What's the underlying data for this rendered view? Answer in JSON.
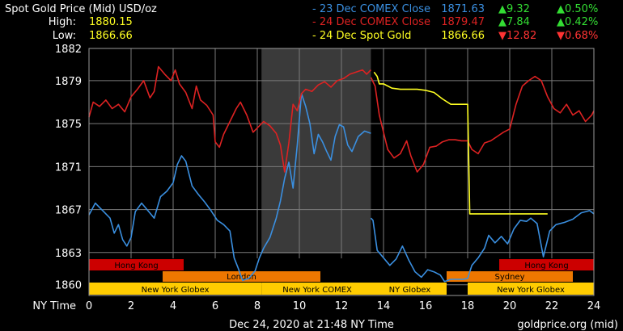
{
  "header": {
    "title": "Spot Gold Price (Mid) USD/oz",
    "high_label": "High:",
    "high_value": "1880.15",
    "low_label": "Low:",
    "low_value": "1866.66"
  },
  "legend": [
    {
      "label": "- 23 Dec COMEX Close",
      "value": "1871.63",
      "change": "▲9.32",
      "pct": "▲0.50%",
      "color": "#3a8fe0",
      "change_color": "#33dd33"
    },
    {
      "label": "- 24 Dec COMEX Close",
      "value": "1879.47",
      "change": "▲7.84",
      "pct": "▲0.42%",
      "color": "#dd2222",
      "change_color": "#33dd33"
    },
    {
      "label": "- 24 Dec Spot Gold",
      "value": "1866.66",
      "change": "▼12.82",
      "pct": "▼0.68%",
      "color": "#ffff22",
      "change_color": "#ff3333"
    }
  ],
  "footer": {
    "timestamp": "Dec 24, 2020 at 21:48 NY Time",
    "source": "goldprice.org (mid)"
  },
  "colors": {
    "series_23dec": "#3a8fe0",
    "series_24dec": "#dd2222",
    "series_spot": "#ffff22",
    "grid": "#7a7a7a",
    "shade": "#3a3a3a",
    "session_hk": "#cc0000",
    "session_london": "#ee7700",
    "session_ny": "#ffcc00"
  },
  "chart_data": {
    "type": "line",
    "xlabel": "NY Time",
    "xlim": [
      0,
      24
    ],
    "ylim": [
      1859,
      1882
    ],
    "x_ticks": [
      0,
      2,
      4,
      6,
      8,
      10,
      12,
      14,
      16,
      18,
      20,
      22,
      24
    ],
    "y_ticks": [
      1860,
      1863,
      1867,
      1871,
      1875,
      1879,
      1882
    ],
    "shaded_range": [
      8.2,
      13.4
    ],
    "grid": true,
    "sessions": [
      {
        "name": "Hong Kong",
        "row": 0,
        "start": 0,
        "end": 4.5,
        "color": "#cc0000"
      },
      {
        "name": "Hong Kong",
        "row": 0,
        "start": 19.5,
        "end": 24,
        "color": "#cc0000"
      },
      {
        "name": "London",
        "row": 1,
        "start": 3.5,
        "end": 11,
        "color": "#ee7700"
      },
      {
        "name": "Sydney",
        "row": 1,
        "start": 17,
        "end": 23,
        "color": "#ee7700"
      },
      {
        "name": "New York Globex",
        "row": 2,
        "start": 0,
        "end": 8.2,
        "color": "#ffcc00"
      },
      {
        "name": "New York COMEX",
        "row": 2,
        "start": 8.2,
        "end": 13.5,
        "color": "#ffcc00"
      },
      {
        "name": "NY Globex",
        "row": 2,
        "start": 13.5,
        "end": 17,
        "color": "#ffcc00"
      },
      {
        "name": "New York Globex",
        "row": 2,
        "start": 18,
        "end": 24,
        "color": "#ffcc00"
      }
    ],
    "series": [
      {
        "name": "23 Dec COMEX Close",
        "color": "#3a8fe0",
        "segments": [
          [
            [
              0,
              1866.5
            ],
            [
              0.3,
              1867.6
            ],
            [
              0.7,
              1866.8
            ],
            [
              1.0,
              1866.2
            ],
            [
              1.2,
              1864.8
            ],
            [
              1.4,
              1865.6
            ],
            [
              1.6,
              1864.2
            ],
            [
              1.8,
              1863.6
            ],
            [
              2.0,
              1864.4
            ],
            [
              2.2,
              1866.8
            ],
            [
              2.5,
              1867.6
            ],
            [
              2.8,
              1866.9
            ],
            [
              3.1,
              1866.2
            ],
            [
              3.4,
              1868.2
            ],
            [
              3.7,
              1868.7
            ],
            [
              4.0,
              1869.5
            ],
            [
              4.2,
              1871.2
            ],
            [
              4.4,
              1872.0
            ],
            [
              4.6,
              1871.5
            ],
            [
              4.9,
              1869.2
            ],
            [
              5.2,
              1868.4
            ],
            [
              5.5,
              1867.7
            ],
            [
              5.8,
              1866.9
            ],
            [
              6.1,
              1866.0
            ],
            [
              6.4,
              1865.6
            ],
            [
              6.7,
              1865.0
            ],
            [
              6.9,
              1862.5
            ],
            [
              7.1,
              1861.5
            ],
            [
              7.3,
              1860.4
            ],
            [
              7.6,
              1860.6
            ],
            [
              7.9,
              1861.3
            ],
            [
              8.1,
              1862.5
            ],
            [
              8.3,
              1863.4
            ],
            [
              8.6,
              1864.4
            ],
            [
              8.9,
              1866.2
            ],
            [
              9.1,
              1867.8
            ],
            [
              9.3,
              1869.9
            ],
            [
              9.5,
              1871.4
            ],
            [
              9.7,
              1869.0
            ],
            [
              9.9,
              1873.0
            ],
            [
              10.1,
              1877.8
            ],
            [
              10.3,
              1876.6
            ],
            [
              10.5,
              1875.0
            ],
            [
              10.7,
              1872.2
            ],
            [
              10.9,
              1874.0
            ],
            [
              11.1,
              1873.3
            ],
            [
              11.3,
              1872.4
            ],
            [
              11.5,
              1871.6
            ],
            [
              11.7,
              1873.8
            ],
            [
              11.9,
              1874.9
            ],
            [
              12.1,
              1874.7
            ],
            [
              12.3,
              1873.0
            ],
            [
              12.5,
              1872.4
            ],
            [
              12.8,
              1873.8
            ],
            [
              13.1,
              1874.3
            ],
            [
              13.4,
              1874.1
            ]
          ],
          [
            [
              13.4,
              1866.2
            ],
            [
              13.5,
              1866.0
            ],
            [
              13.7,
              1863.2
            ],
            [
              14.0,
              1862.5
            ],
            [
              14.3,
              1861.8
            ],
            [
              14.6,
              1862.4
            ],
            [
              14.9,
              1863.6
            ],
            [
              15.2,
              1862.3
            ],
            [
              15.5,
              1861.2
            ],
            [
              15.8,
              1860.7
            ],
            [
              16.1,
              1861.4
            ],
            [
              16.4,
              1861.2
            ],
            [
              16.7,
              1860.9
            ],
            [
              16.9,
              1860.3
            ],
            [
              17.2,
              1860.5
            ],
            [
              17.5,
              1860.5
            ],
            [
              17.8,
              1860.5
            ],
            [
              18.0,
              1860.6
            ],
            [
              18.2,
              1861.8
            ],
            [
              18.5,
              1862.5
            ],
            [
              18.8,
              1863.4
            ],
            [
              19.0,
              1864.6
            ],
            [
              19.3,
              1863.9
            ],
            [
              19.6,
              1864.5
            ],
            [
              19.9,
              1863.8
            ],
            [
              20.2,
              1865.2
            ],
            [
              20.5,
              1866.0
            ],
            [
              20.8,
              1865.9
            ],
            [
              21.0,
              1866.2
            ],
            [
              21.3,
              1865.7
            ],
            [
              21.6,
              1862.6
            ],
            [
              21.9,
              1865.0
            ],
            [
              22.2,
              1865.6
            ],
            [
              22.6,
              1865.8
            ],
            [
              23.0,
              1866.1
            ],
            [
              23.4,
              1866.7
            ],
            [
              23.8,
              1866.9
            ],
            [
              24.0,
              1866.6
            ]
          ]
        ]
      },
      {
        "name": "24 Dec COMEX Close",
        "color": "#dd2222",
        "segments": [
          [
            [
              0,
              1875.6
            ],
            [
              0.2,
              1877.0
            ],
            [
              0.5,
              1876.6
            ],
            [
              0.8,
              1877.2
            ],
            [
              1.1,
              1876.4
            ],
            [
              1.4,
              1876.8
            ],
            [
              1.7,
              1876.1
            ],
            [
              2.0,
              1877.5
            ],
            [
              2.3,
              1878.2
            ],
            [
              2.6,
              1879.0
            ],
            [
              2.9,
              1877.4
            ],
            [
              3.1,
              1878.0
            ],
            [
              3.3,
              1880.3
            ],
            [
              3.6,
              1879.6
            ],
            [
              3.9,
              1879.0
            ],
            [
              4.1,
              1880.0
            ],
            [
              4.3,
              1878.7
            ],
            [
              4.6,
              1877.9
            ],
            [
              4.9,
              1876.4
            ],
            [
              5.1,
              1878.5
            ],
            [
              5.3,
              1877.2
            ],
            [
              5.6,
              1876.7
            ],
            [
              5.9,
              1875.8
            ],
            [
              6.0,
              1873.3
            ],
            [
              6.2,
              1872.8
            ],
            [
              6.4,
              1874.0
            ],
            [
              6.7,
              1875.2
            ],
            [
              7.0,
              1876.4
            ],
            [
              7.2,
              1877.0
            ],
            [
              7.5,
              1875.8
            ],
            [
              7.8,
              1874.2
            ],
            [
              8.0,
              1874.6
            ],
            [
              8.3,
              1875.2
            ],
            [
              8.6,
              1874.8
            ],
            [
              8.9,
              1874.1
            ],
            [
              9.1,
              1873.0
            ],
            [
              9.3,
              1870.5
            ],
            [
              9.5,
              1873.2
            ],
            [
              9.7,
              1876.8
            ],
            [
              9.9,
              1876.2
            ],
            [
              10.1,
              1877.8
            ],
            [
              10.3,
              1878.2
            ],
            [
              10.6,
              1878.0
            ],
            [
              10.9,
              1878.6
            ],
            [
              11.2,
              1878.9
            ],
            [
              11.5,
              1878.4
            ],
            [
              11.8,
              1879.0
            ],
            [
              12.1,
              1879.2
            ],
            [
              12.4,
              1879.6
            ],
            [
              12.7,
              1879.8
            ],
            [
              13.0,
              1880.0
            ],
            [
              13.2,
              1879.6
            ],
            [
              13.4,
              1880.0
            ]
          ],
          [
            [
              13.4,
              1879.3
            ],
            [
              13.6,
              1878.5
            ],
            [
              13.8,
              1875.8
            ],
            [
              14.0,
              1874.2
            ],
            [
              14.2,
              1872.6
            ],
            [
              14.5,
              1871.8
            ],
            [
              14.8,
              1872.2
            ],
            [
              15.1,
              1873.4
            ],
            [
              15.3,
              1872.0
            ],
            [
              15.6,
              1870.5
            ],
            [
              15.9,
              1871.2
            ],
            [
              16.2,
              1872.8
            ],
            [
              16.5,
              1872.9
            ],
            [
              16.8,
              1873.3
            ],
            [
              17.1,
              1873.5
            ],
            [
              17.4,
              1873.5
            ],
            [
              17.7,
              1873.4
            ],
            [
              18.0,
              1873.4
            ],
            [
              18.2,
              1872.6
            ],
            [
              18.5,
              1872.2
            ],
            [
              18.8,
              1873.2
            ],
            [
              19.1,
              1873.4
            ],
            [
              19.4,
              1873.8
            ],
            [
              19.7,
              1874.2
            ],
            [
              20.0,
              1874.5
            ],
            [
              20.3,
              1876.8
            ],
            [
              20.6,
              1878.5
            ],
            [
              20.9,
              1879.0
            ],
            [
              21.2,
              1879.4
            ],
            [
              21.5,
              1879.0
            ],
            [
              21.8,
              1877.5
            ],
            [
              22.1,
              1876.4
            ],
            [
              22.4,
              1876.0
            ],
            [
              22.7,
              1876.8
            ],
            [
              23.0,
              1875.8
            ],
            [
              23.3,
              1876.2
            ],
            [
              23.6,
              1875.2
            ],
            [
              23.9,
              1875.8
            ],
            [
              24.0,
              1876.2
            ]
          ]
        ]
      },
      {
        "name": "24 Dec Spot Gold",
        "color": "#ffff22",
        "segments": [
          [
            [
              13.55,
              1879.8
            ],
            [
              13.7,
              1879.4
            ],
            [
              13.8,
              1878.7
            ],
            [
              14.0,
              1878.7
            ],
            [
              14.4,
              1878.3
            ],
            [
              14.8,
              1878.2
            ],
            [
              15.2,
              1878.2
            ],
            [
              15.6,
              1878.2
            ],
            [
              16.0,
              1878.1
            ],
            [
              16.4,
              1877.9
            ],
            [
              16.8,
              1877.3
            ],
            [
              17.2,
              1876.8
            ],
            [
              17.6,
              1876.8
            ],
            [
              18.0,
              1876.8
            ],
            [
              18.1,
              1866.6
            ],
            [
              18.6,
              1866.6
            ],
            [
              19.4,
              1866.6
            ],
            [
              20.2,
              1866.6
            ],
            [
              21.0,
              1866.6
            ],
            [
              21.8,
              1866.6
            ]
          ]
        ]
      }
    ]
  }
}
